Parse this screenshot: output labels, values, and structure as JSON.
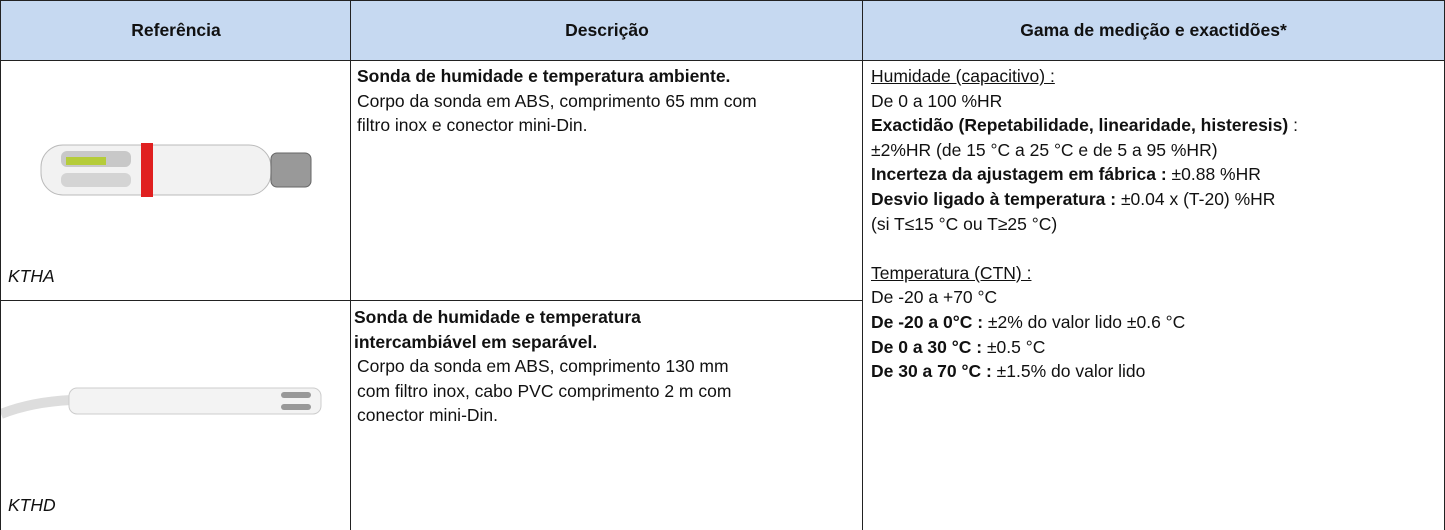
{
  "table": {
    "headers": [
      "Referência",
      "Descrição",
      "Gama de medição e exactidões*"
    ],
    "rows": [
      {
        "reference": "KTHA",
        "description": {
          "title": [
            "Sonda de humidade e temperatura ambiente."
          ],
          "body": [
            "Corpo da sonda em ABS, comprimento 65 mm com",
            "filtro inox e conector mini-Din."
          ]
        }
      },
      {
        "reference": "KTHD",
        "description": {
          "title": [
            "Sonda de humidade e temperatura",
            "intercambiável em separável."
          ],
          "body": [
            "Corpo da sonda em  ABS, comprimento 130 mm",
            "com filtro inox, cabo PVC comprimento 2 m com",
            "conector  mini-Din."
          ]
        }
      }
    ],
    "ranges": [
      {
        "heading": "Humidade (capacitivo) :",
        "lines": [
          {
            "text": "De 0 a 100 %HR"
          },
          {
            "label": "Exactidão (Repetabilidade, linearidade, histeresis)",
            "text": " :"
          },
          {
            "text": "±2%HR (de 15 °C a 25 °C e de 5 a 95 %HR)"
          },
          {
            "label": "Incerteza da ajustagem em fábrica :",
            "text": " ±0.88 %HR"
          },
          {
            "label": "Desvio ligado à temperatura :",
            "text": " ±0.04 x (T-20) %HR"
          },
          {
            "text": "(si T≤15 °C ou T≥25 °C)"
          }
        ]
      },
      {
        "heading": "Temperatura (CTN) :",
        "lines": [
          {
            "text": "De -20 a +70 °C"
          },
          {
            "label": "De -20 a 0°C :",
            "text": " ±2% do valor lido ±0.6 °C"
          },
          {
            "label": "De 0 a 30 °C :",
            "text": " ±0.5 °C"
          },
          {
            "label": "De 30 a 70 °C :",
            "text": " ±1.5%  do valor lido"
          }
        ]
      }
    ]
  }
}
